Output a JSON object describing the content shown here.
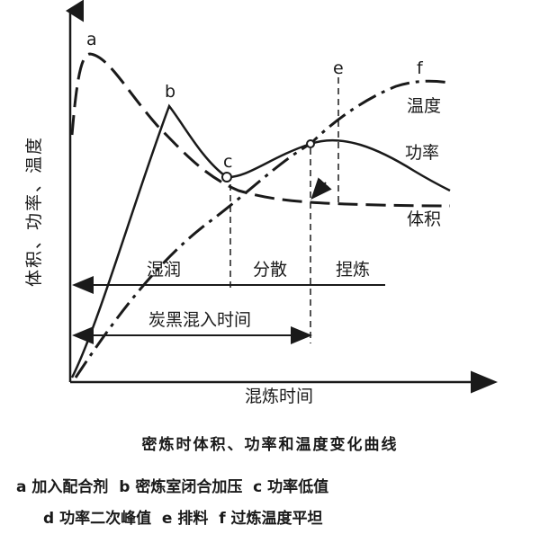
{
  "axes": {
    "y_label": "体积、功率、温度",
    "x_label": "混炼时间"
  },
  "points": {
    "a": "a",
    "b": "b",
    "c": "c",
    "e": "e",
    "f": "f"
  },
  "curves": {
    "temperature": "温度",
    "power": "功率",
    "volume": "体积"
  },
  "phases": {
    "wetting": "湿润",
    "dispersion": "分散",
    "kneading": "捏炼",
    "carbon_black_time": "炭黑混入时间"
  },
  "caption": {
    "title": "密炼时体积、功率和温度变化曲线",
    "legend_line1": "a 加入配合剂  b 密炼室闭合加压  c 功率低值",
    "legend_line2": "d 功率二次峰值  e 排料  f 过炼温度平坦"
  }
}
